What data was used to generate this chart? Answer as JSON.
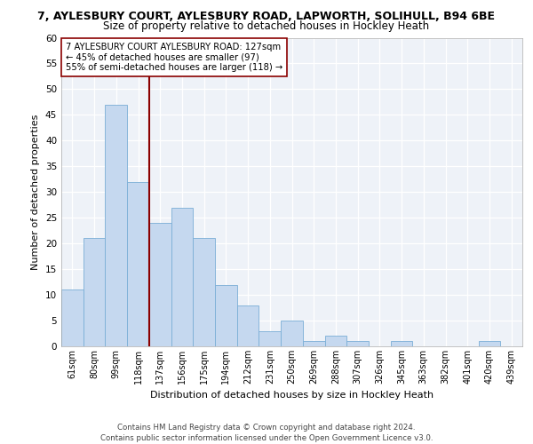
{
  "title_line1": "7, AYLESBURY COURT, AYLESBURY ROAD, LAPWORTH, SOLIHULL, B94 6BE",
  "title_line2": "Size of property relative to detached houses in Hockley Heath",
  "xlabel": "Distribution of detached houses by size in Hockley Heath",
  "ylabel": "Number of detached properties",
  "categories": [
    "61sqm",
    "80sqm",
    "99sqm",
    "118sqm",
    "137sqm",
    "156sqm",
    "175sqm",
    "194sqm",
    "212sqm",
    "231sqm",
    "250sqm",
    "269sqm",
    "288sqm",
    "307sqm",
    "326sqm",
    "345sqm",
    "363sqm",
    "382sqm",
    "401sqm",
    "420sqm",
    "439sqm"
  ],
  "values": [
    11,
    21,
    47,
    32,
    24,
    27,
    21,
    12,
    8,
    3,
    5,
    1,
    2,
    1,
    0,
    1,
    0,
    0,
    0,
    1,
    0
  ],
  "bar_color": "#c5d8ef",
  "bar_edgecolor": "#7aaed6",
  "vline_color": "#8b0000",
  "annotation_text": "7 AYLESBURY COURT AYLESBURY ROAD: 127sqm\n← 45% of detached houses are smaller (97)\n55% of semi-detached houses are larger (118) →",
  "annotation_box_edgecolor": "#8b0000",
  "ylim": [
    0,
    60
  ],
  "yticks": [
    0,
    5,
    10,
    15,
    20,
    25,
    30,
    35,
    40,
    45,
    50,
    55,
    60
  ],
  "footer": "Contains HM Land Registry data © Crown copyright and database right 2024.\nContains public sector information licensed under the Open Government Licence v3.0.",
  "plot_bg_color": "#eef2f8",
  "grid_color": "#ffffff",
  "title_fontsize": 9,
  "subtitle_fontsize": 8.5
}
